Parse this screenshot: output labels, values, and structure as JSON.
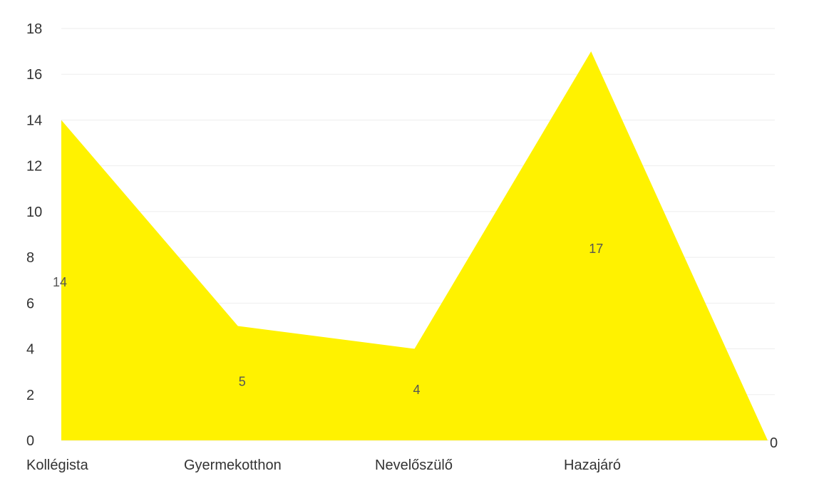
{
  "chart_data": {
    "type": "area",
    "categories": [
      "Kollégista",
      "Gyermekotthon",
      "Nevelőszülő",
      "Hazajáró",
      ""
    ],
    "values": [
      14,
      5,
      4,
      17,
      0
    ],
    "data_labels": [
      "14",
      "5",
      "4",
      "17",
      "0"
    ],
    "ylim": [
      0,
      18
    ],
    "yticks": [
      0,
      2,
      4,
      6,
      8,
      10,
      12,
      14,
      16,
      18
    ],
    "ytick_labels": [
      "0",
      "2",
      "4",
      "6",
      "8",
      "10",
      "12",
      "14",
      "16",
      "18"
    ],
    "grid": true,
    "fill_color": "#FFF200",
    "title": "",
    "xlabel": "",
    "ylabel": ""
  }
}
